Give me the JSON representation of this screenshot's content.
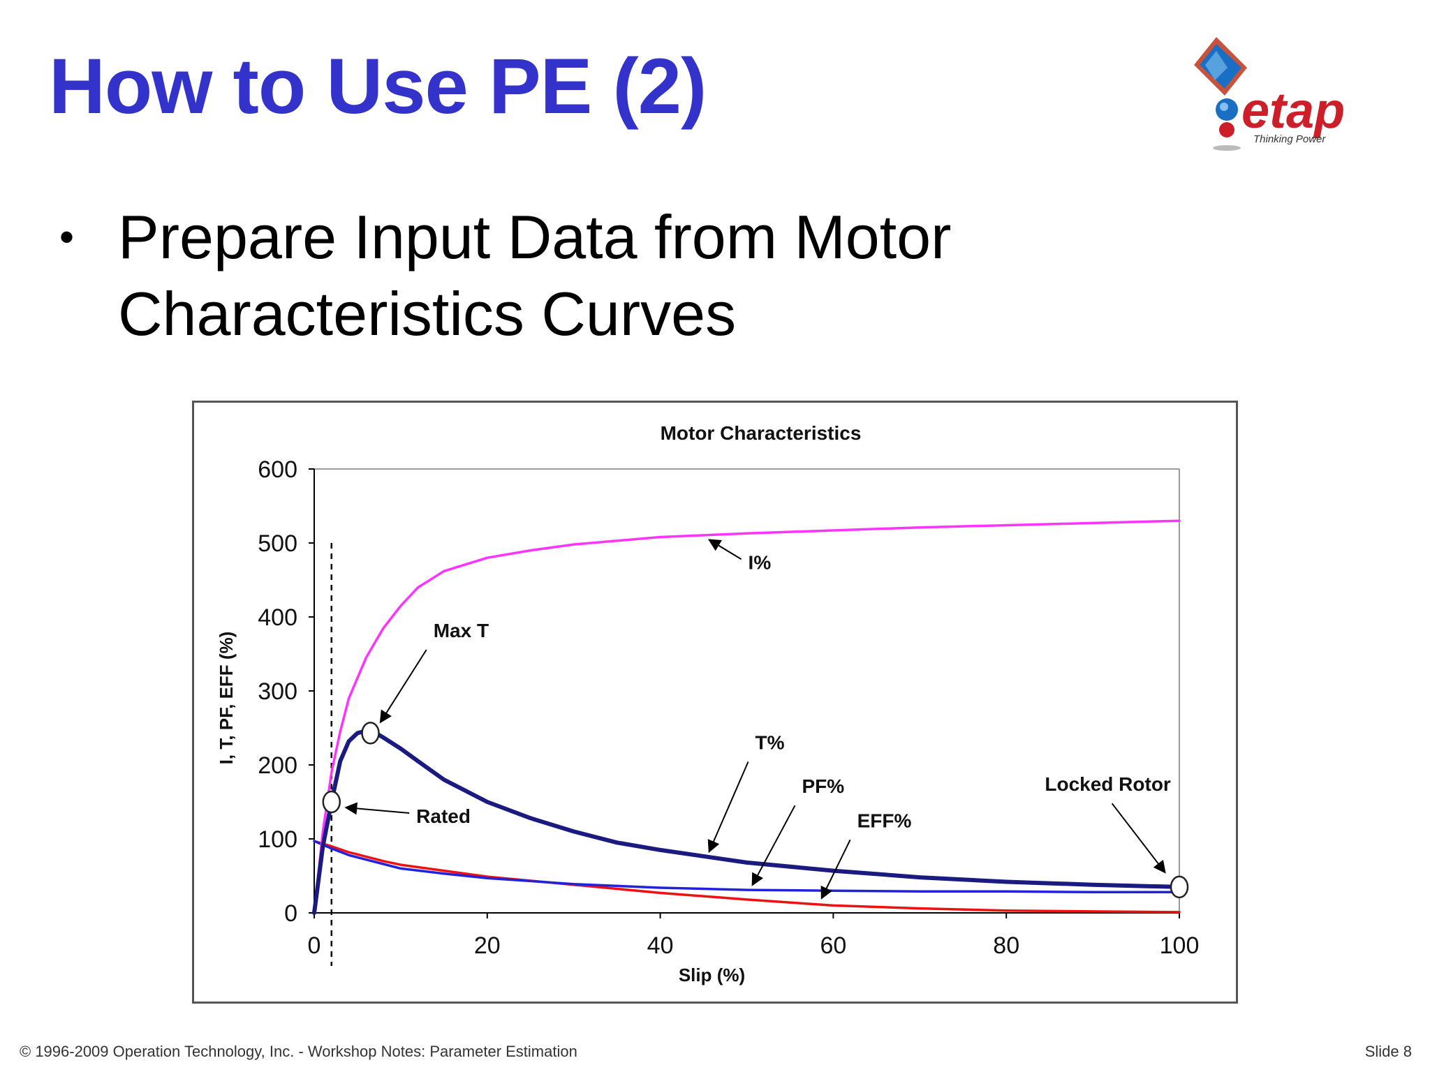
{
  "slide": {
    "title": "How to Use PE (2)",
    "bullet": "Prepare Input Data from Motor Characteristics Curves",
    "footer_left": "© 1996-2009 Operation Technology, Inc. - Workshop Notes: Parameter Estimation",
    "footer_right": "Slide 8"
  },
  "logo": {
    "wordmark": "etap",
    "tagline": "Thinking Power",
    "colors": {
      "wordmark": "#cc1f2a",
      "globe": "#1a6fc4",
      "frame": "#c9533a"
    }
  },
  "chart_data": {
    "type": "line",
    "title": "Motor Characteristics",
    "xlabel": "Slip (%)",
    "ylabel": "I, T, PF, EFF (%)",
    "xlim": [
      0,
      100
    ],
    "ylim": [
      0,
      600
    ],
    "xticks": [
      0,
      20,
      40,
      60,
      80,
      100
    ],
    "yticks": [
      0,
      100,
      200,
      300,
      400,
      500,
      600
    ],
    "grid": false,
    "legend": "none",
    "series": [
      {
        "name": "I%",
        "color": "#ff33ff",
        "x": [
          0,
          1,
          2,
          3,
          4,
          6,
          8,
          10,
          12,
          15,
          20,
          25,
          30,
          40,
          50,
          60,
          70,
          80,
          90,
          100
        ],
        "y": [
          0,
          110,
          190,
          245,
          290,
          345,
          385,
          415,
          440,
          462,
          480,
          490,
          498,
          508,
          513,
          517,
          521,
          524,
          527,
          530
        ]
      },
      {
        "name": "T%",
        "color": "#1a1a80",
        "x": [
          0,
          1,
          2,
          3,
          4,
          5,
          6,
          7,
          8,
          10,
          12,
          15,
          20,
          25,
          30,
          35,
          40,
          50,
          60,
          70,
          80,
          90,
          100
        ],
        "y": [
          0,
          90,
          150,
          205,
          232,
          243,
          246,
          244,
          237,
          222,
          205,
          180,
          150,
          128,
          110,
          95,
          85,
          68,
          57,
          48,
          42,
          38,
          35
        ]
      },
      {
        "name": "PF%",
        "color": "#2222dd",
        "x": [
          0,
          2,
          4,
          6,
          8,
          10,
          15,
          20,
          30,
          40,
          50,
          60,
          70,
          80,
          90,
          100
        ],
        "y": [
          97,
          87,
          78,
          72,
          66,
          60,
          53,
          47,
          39,
          34,
          31,
          30,
          29,
          29,
          28,
          28
        ]
      },
      {
        "name": "EFF%",
        "color": "#ee1111",
        "x": [
          0,
          2,
          4,
          6,
          8,
          10,
          15,
          20,
          30,
          40,
          50,
          60,
          70,
          80,
          90,
          100
        ],
        "y": [
          97,
          90,
          82,
          76,
          70,
          65,
          57,
          49,
          38,
          27,
          18,
          10,
          6,
          3,
          2,
          1
        ]
      }
    ],
    "markers": [
      {
        "name": "Rated",
        "x": 2,
        "y": 150
      },
      {
        "name": "Max T",
        "x": 6.5,
        "y": 243
      },
      {
        "name": "Locked Rotor",
        "x": 100,
        "y": 35
      }
    ],
    "annotations": [
      {
        "text": "I%",
        "target_x": 45,
        "target_y": 512,
        "anchor": "below-right"
      },
      {
        "text": "Max T",
        "target_x": 7,
        "target_y": 250,
        "anchor": "above-right"
      },
      {
        "text": "Rated",
        "target_x": 3,
        "target_y": 150,
        "anchor": "right"
      },
      {
        "text": "T%",
        "target_x": 45,
        "target_y": 75,
        "anchor": "above-right"
      },
      {
        "text": "PF%",
        "target_x": 50,
        "target_y": 30,
        "anchor": "above-right"
      },
      {
        "text": "EFF%",
        "target_x": 58,
        "target_y": 12,
        "anchor": "above-right"
      },
      {
        "text": "Locked Rotor",
        "target_x": 99,
        "target_y": 47,
        "anchor": "above-left"
      }
    ],
    "reference_line": {
      "x": 2,
      "style": "dashed"
    }
  }
}
